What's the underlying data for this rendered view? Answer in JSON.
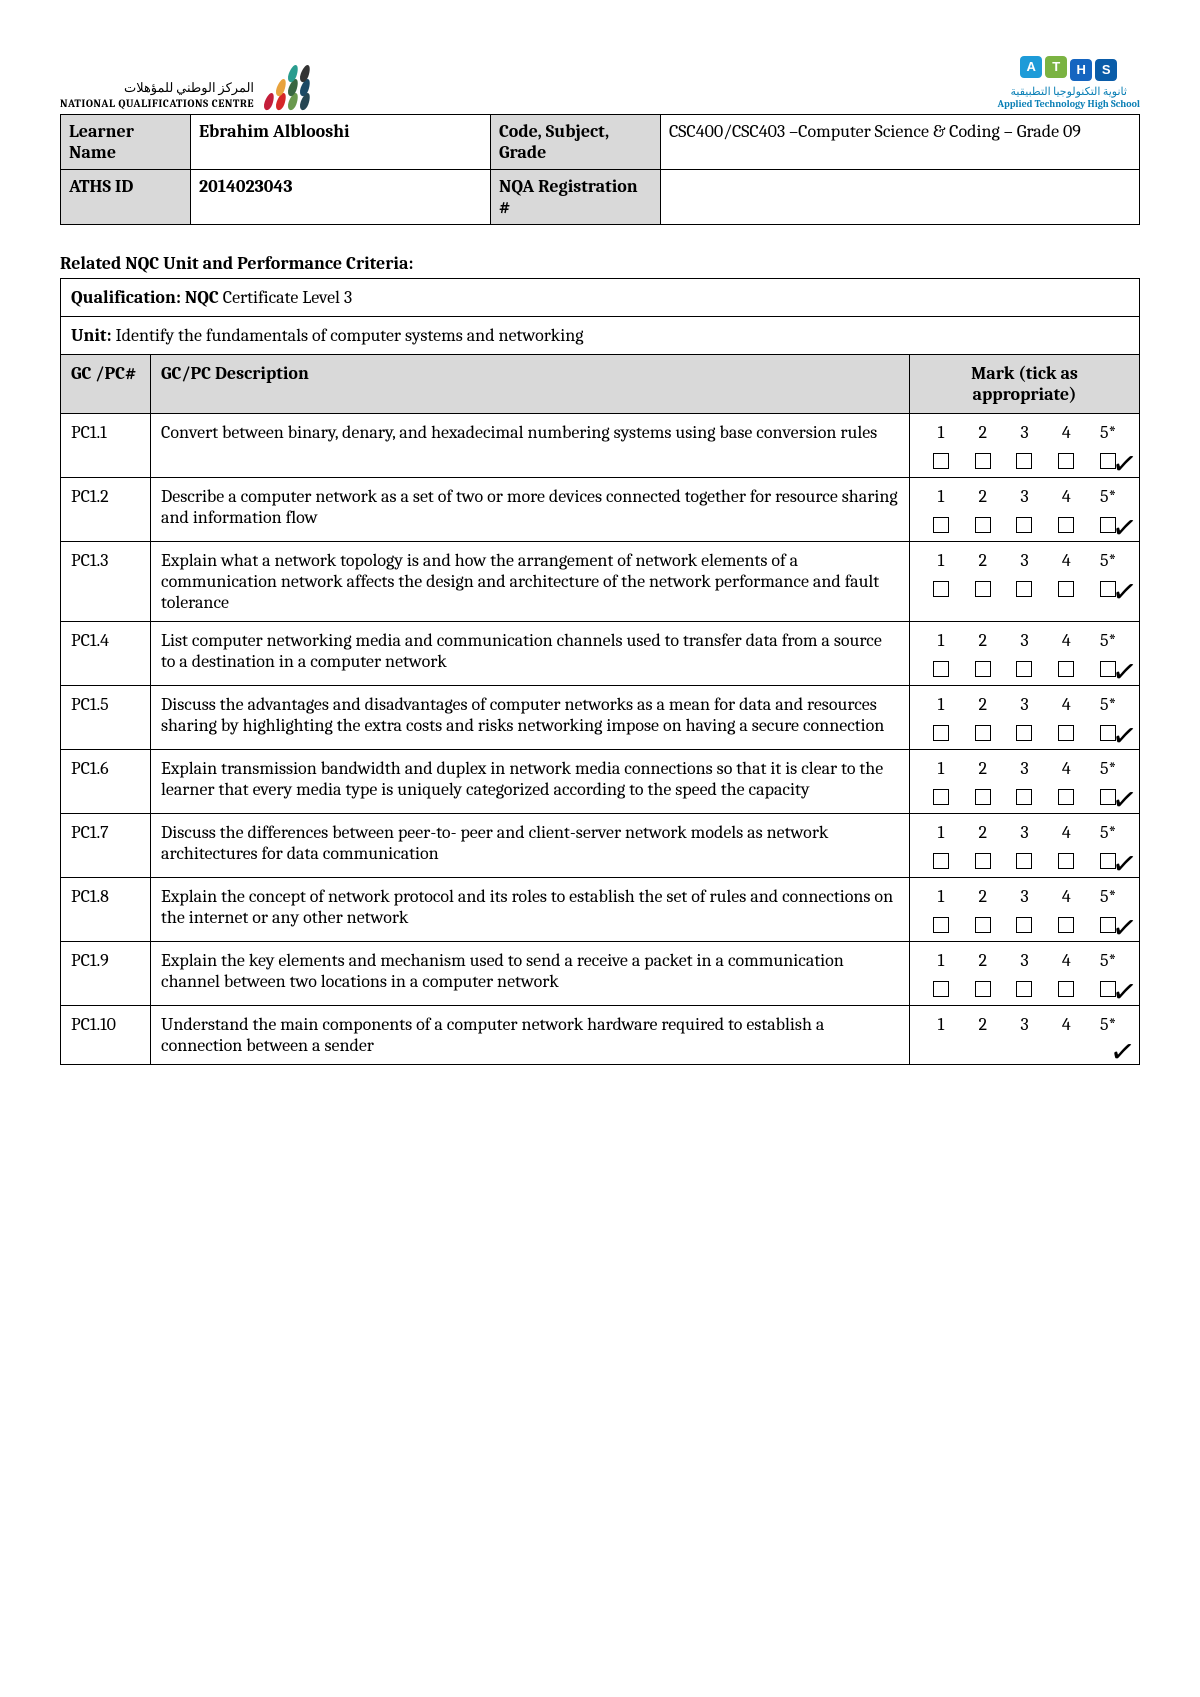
{
  "logos": {
    "nqc_arabic": "المركز الوطني للمؤهلات",
    "nqc_english": "NATIONAL QUALIFICATIONS CENTRE",
    "aths_arabic": "ثانوية التكنولوجيا التطبيقية",
    "aths_english": "Applied Technology High School",
    "aths_badges": [
      {
        "letter": "A",
        "bg": "#1e9bd8"
      },
      {
        "letter": "T",
        "bg": "#7bb342"
      },
      {
        "letter": "H",
        "bg": "#1565c0"
      },
      {
        "letter": "S",
        "bg": "#0a5ca8"
      }
    ],
    "leaf_colors": [
      "#c41e3a",
      "#d62828",
      "#e8a33d",
      "#6a994e",
      "#386641",
      "#2a9d8f",
      "#264653",
      "#1b4965",
      "#333333"
    ]
  },
  "info": {
    "learner_label": "Learner Name",
    "learner_value": "Ebrahim Alblooshi",
    "code_label": "Code, Subject, Grade",
    "code_value": "CSC400/CSC403 –Computer Science & Coding – Grade 09",
    "aths_id_label": "ATHS ID",
    "aths_id_value": "2014023043",
    "nqa_label": "NQA Registration #",
    "nqa_value": ""
  },
  "section_title": "Related NQC Unit and Performance Criteria:",
  "qualification_label": "Qualification: NQC",
  "qualification_value": " Certificate Level 3",
  "unit_label": "Unit:",
  "unit_value": " Identify the fundamentals of computer systems and networking",
  "headers": {
    "gc": "GC /PC#",
    "desc": "GC/PC Description",
    "mark": "Mark (tick as appropriate)"
  },
  "mark_labels": [
    "1",
    "2",
    "3",
    "4",
    "5*"
  ],
  "rows": [
    {
      "id": "PC1.1",
      "desc": "Convert between binary, denary, and hexadecimal numbering systems using base conversion rules",
      "ticked": 5,
      "show_boxes": true
    },
    {
      "id": "PC1.2",
      "desc": "Describe a computer network as a set of two or more devices connected together for resource sharing and information flow",
      "ticked": 5,
      "show_boxes": true
    },
    {
      "id": "PC1.3",
      "desc": "Explain what a network topology is and how the arrangement of network elements of a communication network affects the design and architecture of the network performance and fault tolerance",
      "ticked": 5,
      "show_boxes": true
    },
    {
      "id": "PC1.4",
      "desc": "List computer networking media and communication channels used to transfer data from a source to a destination in a computer network",
      "ticked": 5,
      "show_boxes": true
    },
    {
      "id": "PC1.5",
      "desc": "Discuss the advantages and disadvantages of computer networks as a mean for data and resources sharing by highlighting the extra costs and risks networking impose on having a secure connection",
      "ticked": 5,
      "show_boxes": true
    },
    {
      "id": "PC1.6",
      "desc": "Explain transmission bandwidth and duplex in network media connections so that it is clear to the learner that every media type is uniquely categorized according to the speed the capacity",
      "ticked": 5,
      "show_boxes": true
    },
    {
      "id": "PC1.7",
      "desc": "Discuss the differences between peer-to- peer and client-server network models as network architectures for data communication",
      "ticked": 5,
      "show_boxes": true
    },
    {
      "id": "PC1.8",
      "desc": "Explain the concept of network protocol and its roles to establish the set of rules and connections on the internet or any other network",
      "ticked": 5,
      "show_boxes": true
    },
    {
      "id": "PC1.9",
      "desc": "Explain the key elements and mechanism used to send a receive a packet in a communication channel between two locations in a computer network",
      "ticked": 5,
      "show_boxes": true
    },
    {
      "id": "PC1.10",
      "desc": "Understand the main components of a computer network hardware required to establish a connection between a sender",
      "ticked": 5,
      "show_boxes": false
    }
  ]
}
